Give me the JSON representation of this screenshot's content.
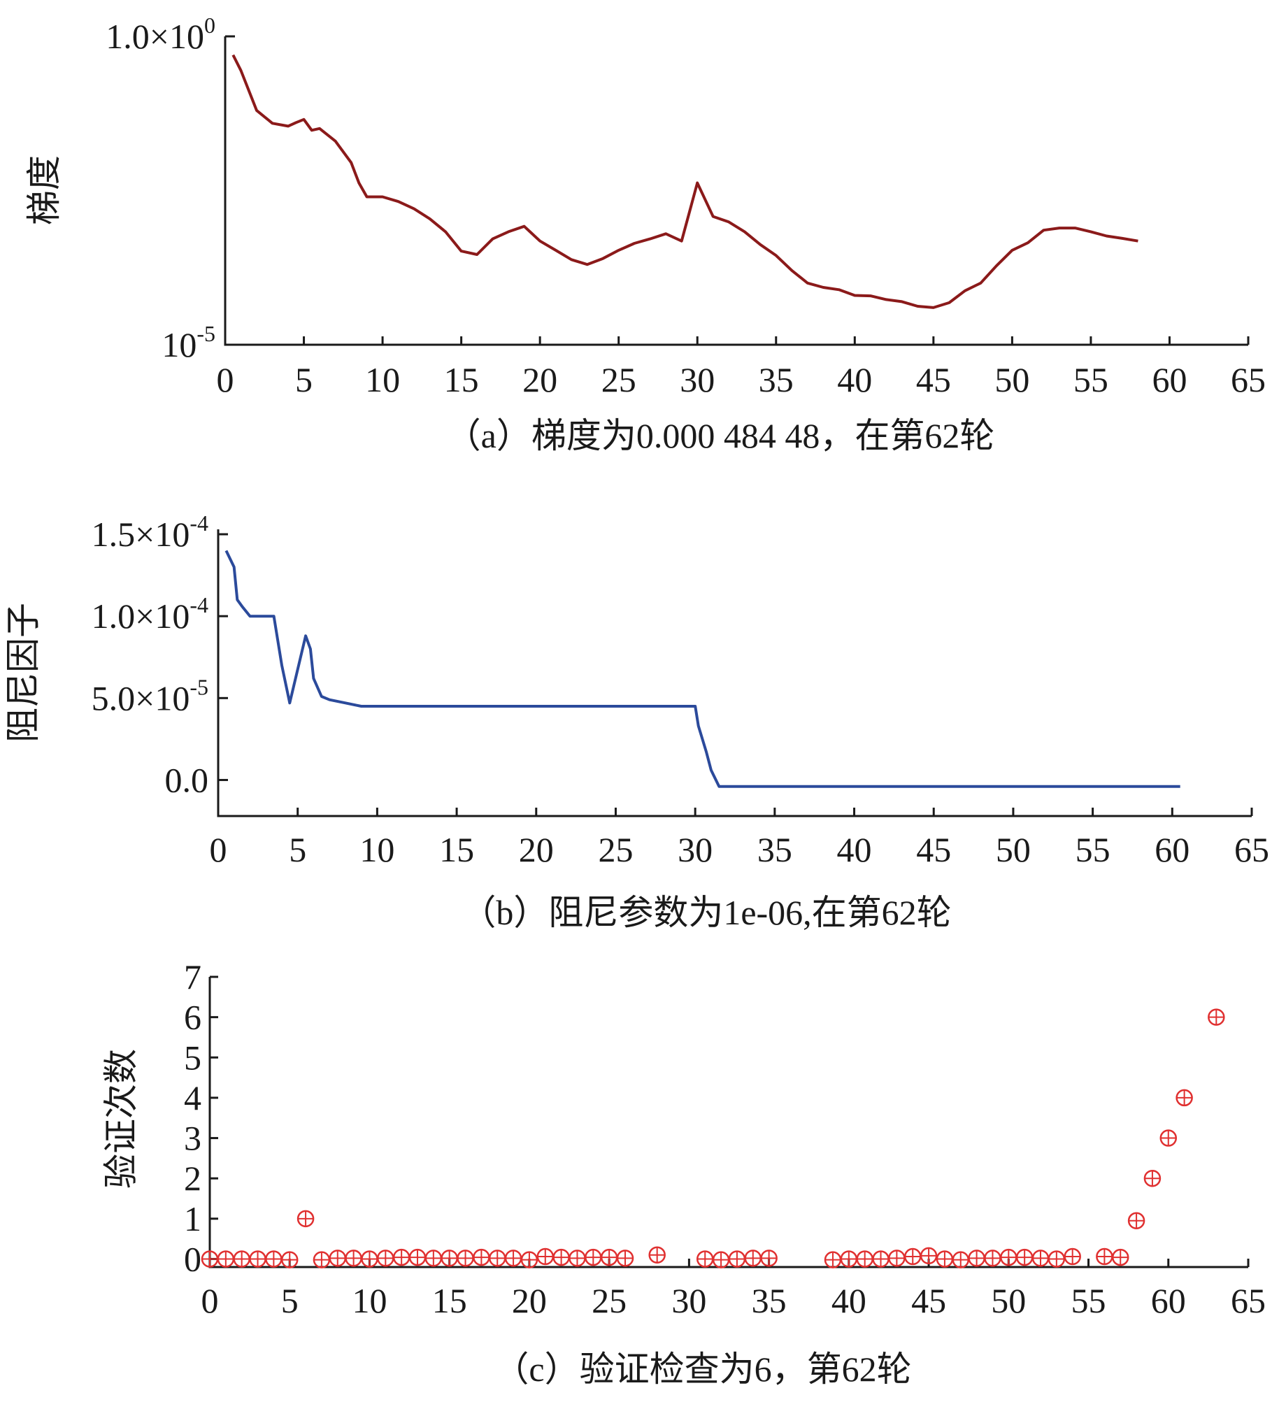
{
  "chart_data": [
    {
      "type": "line",
      "caption": "（a）梯度为0.000 484 48，在第62轮",
      "ylabel": "梯度",
      "yscale": "log",
      "ylim": [
        1e-05,
        1
      ],
      "yticks": [
        {
          "value": 1,
          "base": "1.0×10",
          "exp": "0"
        },
        {
          "value": 1e-05,
          "base": "10",
          "exp": "-5"
        }
      ],
      "xlim": [
        0,
        65
      ],
      "xticks": [
        "0",
        "5",
        "10",
        "15",
        "20",
        "25",
        "30",
        "35",
        "40",
        "45",
        "50",
        "55",
        "60",
        "65"
      ],
      "color": "#8b1a1a",
      "x": [
        0.5,
        1,
        2,
        3,
        4,
        4.5,
        5,
        5.5,
        6,
        7,
        8,
        8.5,
        9,
        10,
        11,
        12,
        13,
        14,
        15,
        16,
        17,
        18,
        19,
        20,
        21,
        22,
        23,
        24,
        25,
        26,
        27,
        28,
        29,
        30,
        31,
        32,
        33,
        34,
        35,
        36,
        37,
        38,
        39,
        40,
        41,
        42,
        43,
        44,
        45,
        46,
        47,
        48,
        49,
        50,
        51,
        52,
        53,
        54,
        55,
        56,
        57,
        58
      ],
      "y": [
        0.5,
        0.28,
        0.063,
        0.039,
        0.035,
        0.04,
        0.045,
        0.03,
        0.032,
        0.02,
        0.009,
        0.0042,
        0.0025,
        0.0025,
        0.0021,
        0.0016,
        0.0011,
        0.00068,
        0.00033,
        0.00029,
        0.00052,
        0.00068,
        0.00083,
        0.00048,
        0.00034,
        0.00024,
        0.0002,
        0.00025,
        0.00034,
        0.00044,
        0.00052,
        0.00063,
        0.00048,
        0.0042,
        0.0012,
        0.00098,
        0.00068,
        0.00042,
        0.00028,
        0.00016,
        0.0001,
        8.5e-05,
        7.8e-05,
        6.3e-05,
        6.2e-05,
        5.4e-05,
        5e-05,
        4.2e-05,
        4e-05,
        4.8e-05,
        7.5e-05,
        0.0001,
        0.00019,
        0.00034,
        0.00045,
        0.00072,
        0.00078,
        0.00078,
        0.00068,
        0.00058,
        0.00053,
        0.00048
      ]
    },
    {
      "type": "line",
      "caption": "（b）阻尼参数为1e-06,在第62轮",
      "ylabel": "阻尼因子",
      "ylim": [
        -2.2e-05,
        0.000153
      ],
      "yticks": [
        {
          "value": 0.00015,
          "base": "1.5×10",
          "exp": "-4"
        },
        {
          "value": 0.0001,
          "base": "1.0×10",
          "exp": "-4"
        },
        {
          "value": 5e-05,
          "base": "5.0×10",
          "exp": "-5"
        },
        {
          "value": 0,
          "base": "0.0",
          "exp": ""
        }
      ],
      "xlim": [
        0,
        65
      ],
      "xticks": [
        "0",
        "5",
        "10",
        "15",
        "20",
        "25",
        "30",
        "35",
        "40",
        "45",
        "50",
        "55",
        "60",
        "65"
      ],
      "color": "#2b4a9b",
      "x": [
        0.5,
        1,
        1.2,
        1.5,
        2,
        3,
        3.5,
        4,
        4.5,
        5.5,
        5.8,
        6,
        6.5,
        7,
        8,
        8.5,
        9,
        10,
        20,
        29,
        30,
        30.2,
        30.7,
        31,
        31.5,
        32,
        35,
        40,
        45,
        50,
        55,
        60,
        60.5
      ],
      "y": [
        0.00014,
        0.00013,
        0.00011,
        0.000106,
        0.0001,
        0.0001,
        0.0001,
        7e-05,
        4.7e-05,
        8.8e-05,
        8e-05,
        6.2e-05,
        5.1e-05,
        4.9e-05,
        4.7e-05,
        4.6e-05,
        4.5e-05,
        4.5e-05,
        4.5e-05,
        4.5e-05,
        4.5e-05,
        3.3e-05,
        1.7e-05,
        6e-06,
        -4e-06,
        -4e-06,
        -4e-06,
        -4e-06,
        -4e-06,
        -4e-06,
        -4e-06,
        -4e-06,
        -4e-06
      ]
    },
    {
      "type": "scatter",
      "caption": "（c）验证检查为6，第62轮",
      "ylabel": "验证次数",
      "ylim": [
        -0.2,
        7
      ],
      "yticks": [
        "0",
        "1",
        "2",
        "3",
        "4",
        "5",
        "6",
        "7"
      ],
      "xlim": [
        0,
        65
      ],
      "xticks": [
        "0",
        "5",
        "10",
        "15",
        "20",
        "25",
        "30",
        "35",
        "40",
        "45",
        "50",
        "55",
        "60",
        "65"
      ],
      "color": "#e03030",
      "x": [
        0,
        1,
        2,
        3,
        4,
        5,
        6,
        7,
        8,
        9,
        10,
        11,
        12,
        13,
        14,
        15,
        16,
        17,
        18,
        19,
        20,
        21,
        22,
        23,
        24,
        25,
        26,
        28,
        31,
        32,
        33,
        34,
        35,
        39,
        40,
        41,
        42,
        43,
        44,
        45,
        46,
        47,
        48,
        49,
        50,
        51,
        52,
        53,
        54,
        56,
        57,
        58,
        59,
        60,
        61,
        63
      ],
      "y": [
        0,
        0,
        0,
        0,
        0,
        -0.02,
        1,
        -0.02,
        0.02,
        0.02,
        0,
        0.02,
        0.04,
        0.04,
        0.02,
        0.02,
        0.02,
        0.04,
        0.02,
        0.02,
        -0.02,
        0.06,
        0.04,
        0.02,
        0.04,
        0.04,
        0.02,
        0.1,
        0,
        -0.02,
        0,
        0.02,
        0.02,
        -0.02,
        0,
        0,
        0,
        0.02,
        0.06,
        0.08,
        0,
        -0.02,
        0.02,
        0.02,
        0.04,
        0.04,
        0.02,
        0,
        0.06,
        0.06,
        0.04,
        0.95,
        2,
        3,
        4,
        6
      ]
    }
  ]
}
